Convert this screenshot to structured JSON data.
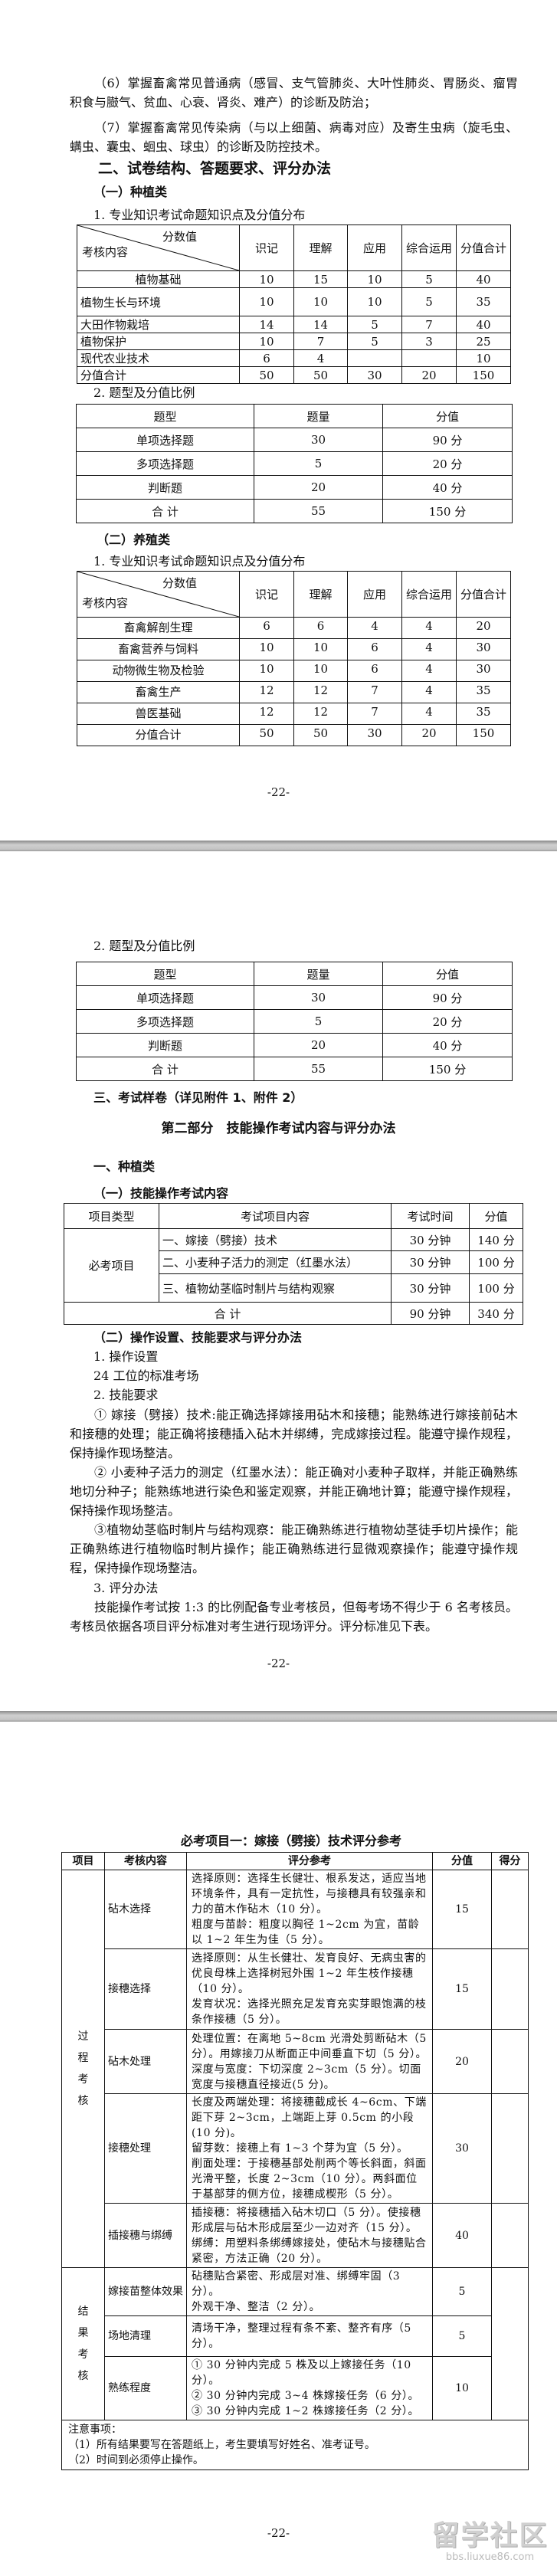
{
  "page1": {
    "para6": "（6）掌握畜禽常见普通病（感冒、支气管肺炎、大叶性肺炎、胃肠炎、瘤胃积食与臌气、贫血、心衰、肾炎、难产）的诊断及防治；",
    "para7": "（7）掌握畜禽常见传染病（与以上细菌、病毒对应）及寄生虫病（旋毛虫、螨虫、囊虫、蛔虫、球虫）的诊断及防控技术。",
    "heading": "二、试卷结构、答题要求、评分办法",
    "sub1": "（一）种植类",
    "t1_title": "1. 专业知识考试命题知识点及分值分布",
    "sub2": "（二）养殖类",
    "t3_title": "1. 专业知识考试命题知识点及分值分布",
    "t2_title": "2. 题型及分值比例",
    "page_number": "-22-"
  },
  "dist_header": {
    "diag_top": "分数值",
    "diag_bottom": "考核内容",
    "cols": [
      "识记",
      "理解",
      "应用",
      "综合运用",
      "分值合计"
    ]
  },
  "table_planting": [
    [
      "植物基础",
      "10",
      "15",
      "10",
      "5",
      "40"
    ],
    [
      "植物生长与环境",
      "10",
      "10",
      "10",
      "5",
      "35"
    ],
    [
      "大田作物栽培",
      "14",
      "14",
      "5",
      "7",
      "40"
    ],
    [
      "植物保护",
      "10",
      "7",
      "5",
      "3",
      "25"
    ],
    [
      "现代农业技术",
      "6",
      "4",
      "",
      "",
      "10"
    ],
    [
      "分值合计",
      "50",
      "50",
      "30",
      "20",
      "150"
    ]
  ],
  "table_types": {
    "header": [
      "题型",
      "题量",
      "分值"
    ],
    "rows": [
      [
        "单项选择题",
        "30",
        "90 分"
      ],
      [
        "多项选择题",
        "5",
        "20 分"
      ],
      [
        "判断题",
        "20",
        "40 分"
      ],
      [
        "合 计",
        "55",
        "150 分"
      ]
    ]
  },
  "table_breeding": [
    [
      "畜禽解剖生理",
      "6",
      "6",
      "4",
      "4",
      "20"
    ],
    [
      "畜禽营养与饲料",
      "10",
      "10",
      "6",
      "4",
      "30"
    ],
    [
      "动物微生物及检验",
      "10",
      "10",
      "6",
      "4",
      "30"
    ],
    [
      "畜禽生产",
      "12",
      "12",
      "7",
      "4",
      "35"
    ],
    [
      "兽医基础",
      "12",
      "12",
      "7",
      "4",
      "35"
    ],
    [
      "分值合计",
      "50",
      "50",
      "30",
      "20",
      "150"
    ]
  ],
  "page2": {
    "t2_title": "2. 题型及分值比例",
    "heading3": "三、考试样卷（详见附件 1、附件 2）",
    "part2_title": "第二部分　技能操作考试内容与评分办法",
    "h_planting": "一、种植类",
    "sub_content": "（一）技能操作考试内容",
    "skill_table": {
      "header": [
        "项目类型",
        "考试项目内容",
        "考试时间",
        "分值"
      ],
      "group": "必考项目",
      "rows": [
        [
          "一、嫁接（劈接）技术",
          "30 分钟",
          "140 分"
        ],
        [
          "二、小麦种子活力的测定（红墨水法）",
          "30 分钟",
          "100 分"
        ],
        [
          "三、植物幼茎临时制片与结构观察",
          "30 分钟",
          "100 分"
        ]
      ],
      "total": [
        "合 计",
        "90 分钟",
        "340 分"
      ]
    },
    "sub_method": "（二）操作设置、技能要求与评分办法",
    "item1": "1. 操作设置",
    "item1_text": "24 工位的标准考场",
    "item2": "2. 技能要求",
    "req1": "① 嫁接（劈接）技术:能正确选择嫁接用砧木和接穗；能熟练进行嫁接前砧木和接穗的处理；能正确将接穗插入砧木并绑缚，完成嫁接过程。能遵守操作规程，保持操作现场整洁。",
    "req2": "② 小麦种子活力的测定（红墨水法）：能正确对小麦种子取样，并能正确熟练地切分种子；能熟练地进行染色和鉴定观察，并能正确地计算；能遵守操作规程，保持操作现场整洁。",
    "req3": "③植物幼茎临时制片与结构观察：能正确熟练进行植物幼茎徒手切片操作；能正确熟练进行植物临时制片操作；能正确熟练进行显微观察操作；能遵守操作规程，保持操作现场整洁。",
    "item3": "3. 评分办法",
    "method_text": "技能操作考试按 1:3 的比例配备专业考核员，但每考场不得少于 6 名考核员。考核员依据各项目评分标准对考生进行现场评分。评分标准见下表。",
    "page_number": "-22-"
  },
  "page3": {
    "title": "必考项目一：嫁接（劈接）技术评分参考",
    "header": [
      "项目",
      "考核内容",
      "评分参考",
      "分值",
      "得分"
    ],
    "groups": [
      {
        "label": "过程考核",
        "rows": [
          {
            "item": "砧木选择",
            "criteria": [
              "选择原则：选择生长健壮、根系发达，适应当地环境条件，具有一定抗性，与接穗具有较强亲和力的苗木作砧木（10 分）。",
              "粗度与苗龄：粗度以胸径 1~2cm 为宜，苗龄以 1~2 年生为佳（5 分）。"
            ],
            "score": "15"
          },
          {
            "item": "接穗选择",
            "criteria": [
              "选择原则：从生长健壮、发育良好、无病虫害的优良母株上选择树冠外围 1~2 年生枝作接穗（10 分）。",
              "发育状况：选择光照充足发育充实芽眼饱满的枝条作接穗（5 分）。"
            ],
            "score": "15"
          },
          {
            "item": "砧木处理",
            "criteria": [
              "处理位置：在离地 5~8cm 光滑处剪断砧木（5 分）。用嫁接刀从断面正中间垂直下切（5 分）。",
              "深度与宽度：下切深度 2~3cm（5 分）。切面宽度与接穗直径接近(5 分)。"
            ],
            "score": "20"
          },
          {
            "item": "接穗处理",
            "criteria": [
              "长度及两端处理：将接穗截成长 4~6cm、下端距下芽 2~3cm，上端距上芽 0.5cm 的小段(10 分)。",
              "留芽数：接穗上有 1~3 个芽为宜（5 分）。",
              "削面处理：于接穗基部处削两个等长斜面，斜面光滑平整，长度 2~3cm（10 分）。两斜面位于基部芽的侧方位，接穗成楔形（5 分）。"
            ],
            "score": "30"
          },
          {
            "item": "插接穗与绑缚",
            "criteria": [
              "插接穗：将接穗插入砧木切口（5 分）。使接穗形成层与砧木形成层至少一边对齐（15 分）。",
              "绑缚：用塑料条绑缚嫁接处，使砧木与接穗贴合紧密，方法正确（20 分）。"
            ],
            "score": "40"
          }
        ]
      },
      {
        "label": "结果考核",
        "rows": [
          {
            "item": "嫁接苗整体效果",
            "criteria": [
              "砧穗贴合紧密、形成层对准、绑缚牢固（3 分）。",
              "外观干净、整洁（2 分）。"
            ],
            "score": "5"
          },
          {
            "item": "场地清理",
            "criteria": [
              "清场干净，整理过程有条不紊、整齐有序（5 分）。"
            ],
            "score": "5"
          },
          {
            "item": "熟练程度",
            "criteria": [
              "① 30 分钟内完成 5 株及以上嫁接任务（10 分）。",
              "② 30 分钟内完成 3~4 株嫁接任务（6 分）。",
              "③ 30 分钟内完成 1~2 株嫁接任务（2 分）。"
            ],
            "score": "10"
          }
        ]
      }
    ],
    "notes": [
      "注意事项：",
      "（1）所有结果要写在答题纸上，考生要填写好姓名、准考证号。",
      "（2）时间到必须停止操作。"
    ],
    "page_number": "-22-"
  },
  "watermark": {
    "logo_text": "留学社区",
    "site": "bbs.liuxue86.com"
  }
}
